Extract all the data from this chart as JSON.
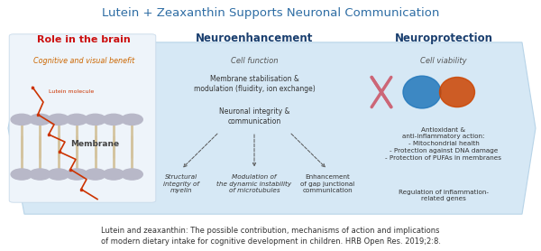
{
  "title": "Lutein + Zeaxanthin Supports Neuronal Communication",
  "title_color": "#2E6DA4",
  "title_fontsize": 9.5,
  "bg_color": "#ffffff",
  "hex_fill": "#d6e8f5",
  "hex_edge": "#b8d4e8",
  "s1_header": "Role in the brain",
  "s1_header_color": "#cc1111",
  "s1_sub": "Cognitive and visual benefit",
  "s1_sub_color": "#cc6600",
  "s1_lutein": "Lutein molecule",
  "s1_membrane": "Membrane",
  "s2_header": "Neuroenhancement",
  "s2_header_color": "#1a3f6f",
  "s2_sub": "Cell function",
  "s2_sub_color": "#555555",
  "s2_text1": "Membrane stabilisation &\nmodulation (fluidity, ion exchange)",
  "s2_text2": "Neuronal integrity &\ncommunication",
  "s2_b1": "Structural\nintegrity of\nmyelin",
  "s2_b2": "Modulation of\nthe dynamic instability\nof microtubules",
  "s2_b3": "Enhancement\nof gap junctional\ncommunication",
  "s3_header": "Neuroprotection",
  "s3_header_color": "#1a3f6f",
  "s3_sub": "Cell viability",
  "s3_sub_color": "#555555",
  "s3_text1": "Antioxidant &\nanti-inflammatory action:\n- Mitochondrial health\n- Protection against DNA damage\n- Protection of PUFAs in membranes",
  "s3_text2": "Regulation of inflammation-\nrelated genes",
  "footnote": "Lutein and zeaxanthin: The possible contribution, mechanisms of action and implications\nof modern dietary intake for cognitive development in children. HRB Open Res. 2019;2:8.",
  "footnote_color": "#333333",
  "footnote_fontsize": 6.0,
  "text_color": "#333333"
}
